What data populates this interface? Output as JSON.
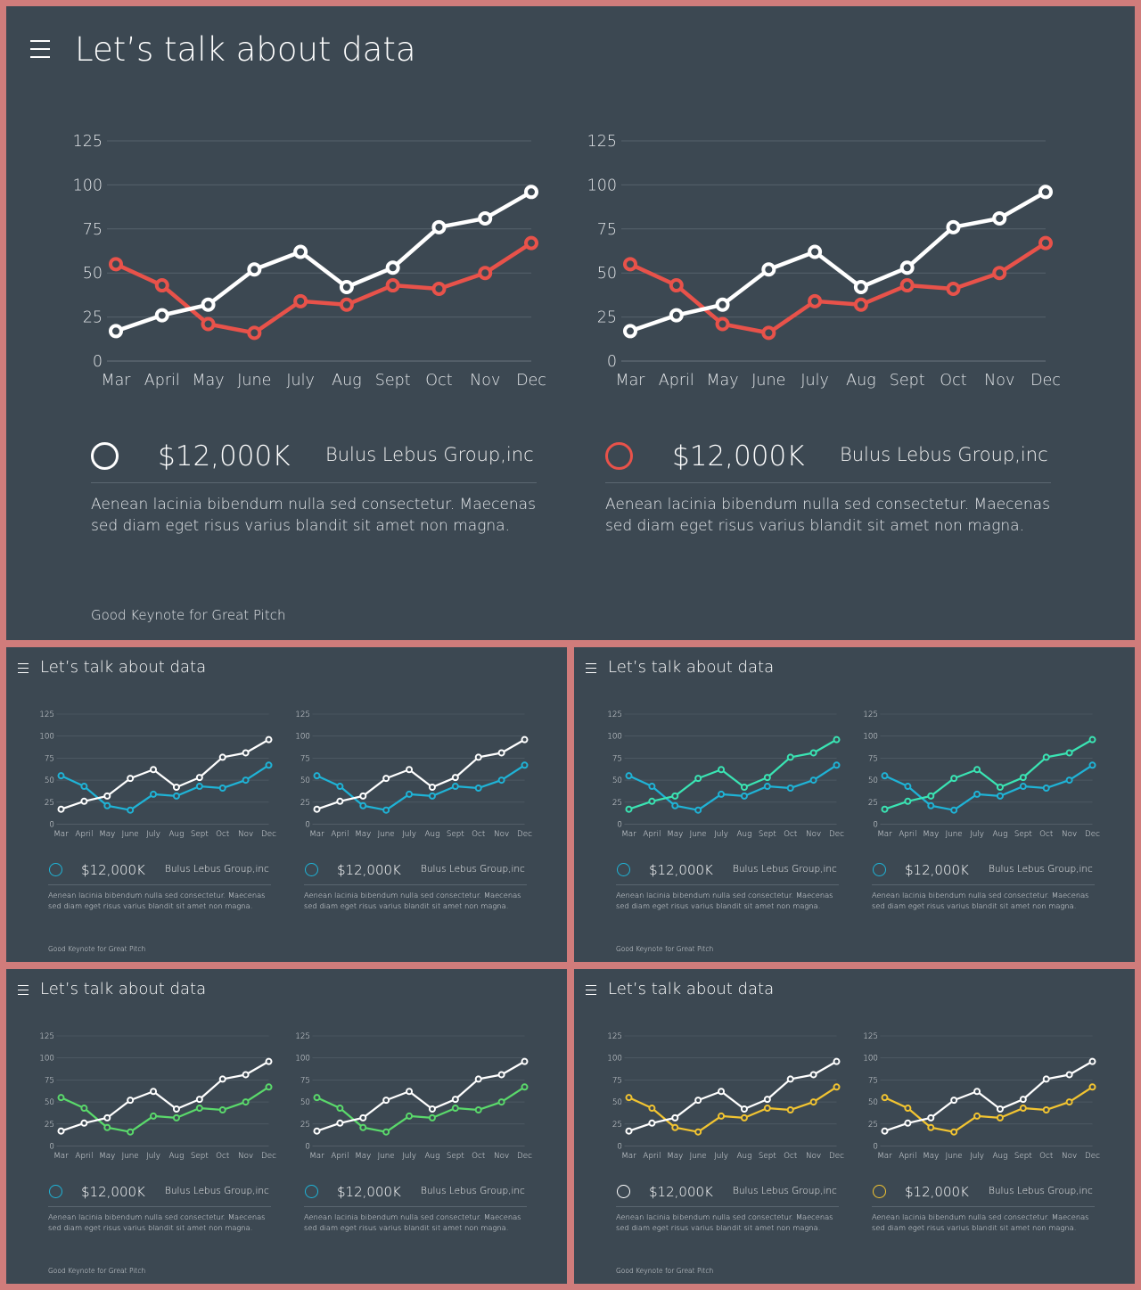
{
  "main": {
    "title": "Let’s talk about data",
    "footer": "Good Keynote for Great Pitch",
    "charts": [
      {
        "legend": {
          "amount": "$12,000K",
          "company": "Bulus Lebus Group,inc",
          "description": "Aenean lacinia bibendum nulla sed consectetur. Maecenas sed diam eget risus varius blandit sit amet non magna."
        }
      },
      {
        "legend": {
          "amount": "$12,000K",
          "company": "Bulus Lebus Group,inc",
          "description": "Aenean lacinia bibendum nulla sed consectetur. Maecenas sed diam eget risus varius blandit sit amet non magna."
        }
      }
    ]
  },
  "thumbnails": [
    {
      "title": "Let’s talk about data",
      "footer": "Good Keynote for Great Pitch",
      "legends": [
        {
          "amount": "$12,000K",
          "company": "Bulus Lebus Group,inc",
          "description": "Aenean lacinia bibendum nulla sed consectetur. Maecenas sed diam eget risus varius blandit sit amet non magna."
        },
        {
          "amount": "$12,000K",
          "company": "Bulus Lebus Group,inc",
          "description": "Aenean lacinia bibendum nulla sed consectetur. Maecenas sed diam eget risus varius blandit sit amet non magna."
        }
      ]
    },
    {
      "title": "Let’s talk about data",
      "footer": "Good Keynote for Great Pitch",
      "legends": [
        {
          "amount": "$12,000K",
          "company": "Bulus Lebus Group,inc",
          "description": "Aenean lacinia bibendum nulla sed consectetur. Maecenas sed diam eget risus varius blandit sit amet non magna."
        },
        {
          "amount": "$12,000K",
          "company": "Bulus Lebus Group,inc",
          "description": "Aenean lacinia bibendum nulla sed consectetur. Maecenas sed diam eget risus varius blandit sit amet non magna."
        }
      ]
    },
    {
      "title": "Let’s talk about data",
      "footer": "Good Keynote for Great Pitch",
      "legends": [
        {
          "amount": "$12,000K",
          "company": "Bulus Lebus Group,inc",
          "description": "Aenean lacinia bibendum nulla sed consectetur. Maecenas sed diam eget risus varius blandit sit amet non magna."
        },
        {
          "amount": "$12,000K",
          "company": "Bulus Lebus Group,inc",
          "description": "Aenean lacinia bibendum nulla sed consectetur. Maecenas sed diam eget risus varius blandit sit amet non magna."
        }
      ]
    },
    {
      "title": "Let’s talk about data",
      "footer": "Good Keynote for Great Pitch",
      "legends": [
        {
          "amount": "$12,000K",
          "company": "Bulus Lebus Group,inc",
          "description": "Aenean lacinia bibendum nulla sed consectetur. Maecenas sed diam eget risus varius blandit sit amet non magna."
        },
        {
          "amount": "$12,000K",
          "company": "Bulus Lebus Group,inc",
          "description": "Aenean lacinia bibendum nulla sed consectetur. Maecenas sed diam eget risus varius blandit sit amet non magna."
        }
      ]
    }
  ],
  "colors": {
    "background": "#d07c7b",
    "slide": "#3c4852",
    "white": "#ffffff",
    "red": "#e8524a",
    "blue": "#1fb3d6",
    "teal": "#3ae4b3",
    "green": "#5ad96b",
    "yellow": "#f2c431"
  },
  "chart_data": [
    {
      "type": "line",
      "categories": [
        "Mar",
        "April",
        "May",
        "June",
        "July",
        "Aug",
        "Sept",
        "Oct",
        "Nov",
        "Dec"
      ],
      "ylim": [
        0,
        125
      ],
      "yticks": [
        "0",
        "25",
        "50",
        "75",
        "100",
        "125"
      ],
      "series": [
        {
          "color": "#ffffff",
          "values": [
            17,
            26,
            32,
            52,
            62,
            42,
            53,
            76,
            81,
            96
          ]
        },
        {
          "color": "#e8524a",
          "values": [
            55,
            43,
            21,
            16,
            34,
            32,
            43,
            41,
            50,
            67
          ]
        }
      ],
      "xlabel": "",
      "ylabel": "",
      "grid": true,
      "legend": "below"
    },
    {
      "type": "line",
      "categories": [
        "Mar",
        "April",
        "May",
        "June",
        "July",
        "Aug",
        "Sept",
        "Oct",
        "Nov",
        "Dec"
      ],
      "ylim": [
        0,
        125
      ],
      "yticks": [
        "0",
        "25",
        "50",
        "75",
        "100",
        "125"
      ],
      "series": [
        {
          "color": "#ffffff",
          "values": [
            17,
            26,
            32,
            52,
            62,
            42,
            53,
            76,
            81,
            96
          ]
        },
        {
          "color": "#e8524a",
          "values": [
            55,
            43,
            21,
            16,
            34,
            32,
            43,
            41,
            50,
            67
          ]
        }
      ],
      "xlabel": "",
      "ylabel": "",
      "grid": true,
      "legend": "below"
    },
    {
      "type": "line",
      "categories": [
        "Mar",
        "April",
        "May",
        "June",
        "July",
        "Aug",
        "Sept",
        "Oct",
        "Nov",
        "Dec"
      ],
      "ylim": [
        0,
        125
      ],
      "yticks": [
        "0",
        "25",
        "50",
        "75",
        "100",
        "125"
      ],
      "series": [
        {
          "color": "#ffffff",
          "values": [
            17,
            26,
            32,
            52,
            62,
            42,
            53,
            76,
            81,
            96
          ]
        },
        {
          "color": "#1fb3d6",
          "values": [
            55,
            43,
            21,
            16,
            34,
            32,
            43,
            41,
            50,
            67
          ]
        }
      ],
      "grid": true
    },
    {
      "type": "line",
      "categories": [
        "Mar",
        "April",
        "May",
        "June",
        "July",
        "Aug",
        "Sept",
        "Oct",
        "Nov",
        "Dec"
      ],
      "ylim": [
        0,
        125
      ],
      "yticks": [
        "0",
        "25",
        "50",
        "75",
        "100",
        "125"
      ],
      "series": [
        {
          "color": "#ffffff",
          "values": [
            17,
            26,
            32,
            52,
            62,
            42,
            53,
            76,
            81,
            96
          ]
        },
        {
          "color": "#1fb3d6",
          "values": [
            55,
            43,
            21,
            16,
            34,
            32,
            43,
            41,
            50,
            67
          ]
        }
      ],
      "grid": true
    },
    {
      "type": "line",
      "categories": [
        "Mar",
        "April",
        "May",
        "June",
        "July",
        "Aug",
        "Sept",
        "Oct",
        "Nov",
        "Dec"
      ],
      "ylim": [
        0,
        125
      ],
      "yticks": [
        "0",
        "25",
        "50",
        "75",
        "100",
        "125"
      ],
      "series": [
        {
          "color": "#3ae4b3",
          "values": [
            17,
            26,
            32,
            52,
            62,
            42,
            53,
            76,
            81,
            96
          ]
        },
        {
          "color": "#1fb3d6",
          "values": [
            55,
            43,
            21,
            16,
            34,
            32,
            43,
            41,
            50,
            67
          ]
        }
      ],
      "grid": true
    },
    {
      "type": "line",
      "categories": [
        "Mar",
        "April",
        "May",
        "June",
        "July",
        "Aug",
        "Sept",
        "Oct",
        "Nov",
        "Dec"
      ],
      "ylim": [
        0,
        125
      ],
      "yticks": [
        "0",
        "25",
        "50",
        "75",
        "100",
        "125"
      ],
      "series": [
        {
          "color": "#3ae4b3",
          "values": [
            17,
            26,
            32,
            52,
            62,
            42,
            53,
            76,
            81,
            96
          ]
        },
        {
          "color": "#1fb3d6",
          "values": [
            55,
            43,
            21,
            16,
            34,
            32,
            43,
            41,
            50,
            67
          ]
        }
      ],
      "grid": true
    },
    {
      "type": "line",
      "categories": [
        "Mar",
        "April",
        "May",
        "June",
        "July",
        "Aug",
        "Sept",
        "Oct",
        "Nov",
        "Dec"
      ],
      "ylim": [
        0,
        125
      ],
      "yticks": [
        "0",
        "25",
        "50",
        "75",
        "100",
        "125"
      ],
      "series": [
        {
          "color": "#ffffff",
          "values": [
            17,
            26,
            32,
            52,
            62,
            42,
            53,
            76,
            81,
            96
          ]
        },
        {
          "color": "#5ad96b",
          "values": [
            55,
            43,
            21,
            16,
            34,
            32,
            43,
            41,
            50,
            67
          ]
        }
      ],
      "grid": true
    },
    {
      "type": "line",
      "categories": [
        "Mar",
        "April",
        "May",
        "June",
        "July",
        "Aug",
        "Sept",
        "Oct",
        "Nov",
        "Dec"
      ],
      "ylim": [
        0,
        125
      ],
      "yticks": [
        "0",
        "25",
        "50",
        "75",
        "100",
        "125"
      ],
      "series": [
        {
          "color": "#ffffff",
          "values": [
            17,
            26,
            32,
            52,
            62,
            42,
            53,
            76,
            81,
            96
          ]
        },
        {
          "color": "#5ad96b",
          "values": [
            55,
            43,
            21,
            16,
            34,
            32,
            43,
            41,
            50,
            67
          ]
        }
      ],
      "grid": true
    },
    {
      "type": "line",
      "categories": [
        "Mar",
        "April",
        "May",
        "June",
        "July",
        "Aug",
        "Sept",
        "Oct",
        "Nov",
        "Dec"
      ],
      "ylim": [
        0,
        125
      ],
      "yticks": [
        "0",
        "25",
        "50",
        "75",
        "100",
        "125"
      ],
      "series": [
        {
          "color": "#ffffff",
          "values": [
            17,
            26,
            32,
            52,
            62,
            42,
            53,
            76,
            81,
            96
          ]
        },
        {
          "color": "#f2c431",
          "values": [
            55,
            43,
            21,
            16,
            34,
            32,
            43,
            41,
            50,
            67
          ]
        }
      ],
      "grid": true
    },
    {
      "type": "line",
      "categories": [
        "Mar",
        "April",
        "May",
        "June",
        "July",
        "Aug",
        "Sept",
        "Oct",
        "Nov",
        "Dec"
      ],
      "ylim": [
        0,
        125
      ],
      "yticks": [
        "0",
        "25",
        "50",
        "75",
        "100",
        "125"
      ],
      "series": [
        {
          "color": "#ffffff",
          "values": [
            17,
            26,
            32,
            52,
            62,
            42,
            53,
            76,
            81,
            96
          ]
        },
        {
          "color": "#f2c431",
          "values": [
            55,
            43,
            21,
            16,
            34,
            32,
            43,
            41,
            50,
            67
          ]
        }
      ],
      "grid": true
    }
  ],
  "legend_markers": [
    {
      "style": "ring",
      "color": "#ffffff"
    },
    {
      "style": "ring",
      "color": "#e8524a"
    },
    {
      "style": "ring",
      "color": "#1fb3d6"
    },
    {
      "style": "ring",
      "color": "#1fb3d6"
    },
    {
      "style": "ring",
      "color": "#1fb3d6"
    },
    {
      "style": "ring",
      "color": "#1fb3d6"
    },
    {
      "style": "ring",
      "color": "#1fb3d6"
    },
    {
      "style": "ring",
      "color": "#1fb3d6"
    },
    {
      "style": "ring",
      "color": "#ffffff"
    },
    {
      "style": "ring",
      "color": "#f2c431"
    }
  ]
}
